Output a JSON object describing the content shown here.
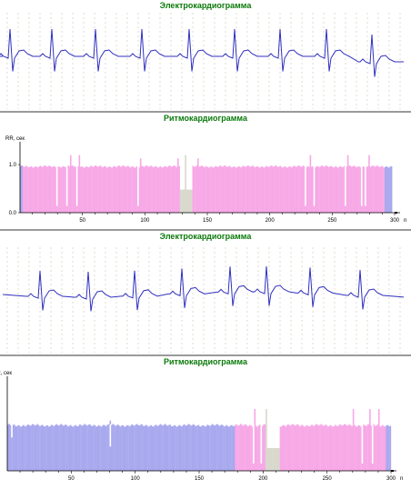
{
  "colors": {
    "ecg_line": "#3030c0",
    "grid": "#c8c8b0",
    "title": "#0a7a0a",
    "bar_pink": "#f7a8e6",
    "bar_blue": "#a8a8ee",
    "bar_gray": "#d8d8cc",
    "bar_white": "#ffffff"
  },
  "panels": [
    {
      "id": "ecg-1",
      "title": "Электрокардиограмма"
    },
    {
      "id": "rhythm-1",
      "title": "Ритмокардиограмма"
    },
    {
      "id": "ecg-2",
      "title": "Электрокардиограмма"
    },
    {
      "id": "rhythm-2",
      "title": "Ритмокардиограмма"
    }
  ],
  "chart_data": [
    {
      "type": "bar",
      "title": "Ритмокардиограмма",
      "ylabel": "RR, сек",
      "xlabel": "n",
      "xlim": [
        0,
        300
      ],
      "ylim": [
        0,
        1.4
      ],
      "x_ticks": [
        50,
        100,
        150,
        200,
        250,
        300
      ],
      "y_ticks": [
        "0.0",
        "1.0"
      ],
      "y_tick_values": [
        0,
        1.0
      ],
      "baseline": 0.96,
      "spikes_up": [
        {
          "n": 40,
          "v": 1.2
        },
        {
          "n": 47,
          "v": 1.2
        },
        {
          "n": 96,
          "v": 1.13
        },
        {
          "n": 126,
          "v": 1.13
        },
        {
          "n": 132,
          "v": 1.2
        },
        {
          "n": 142,
          "v": 1.13
        },
        {
          "n": 232,
          "v": 1.2
        },
        {
          "n": 262,
          "v": 1.2
        },
        {
          "n": 279,
          "v": 1.2
        }
      ],
      "spikes_down": [
        {
          "n": 29,
          "v": 0.14
        },
        {
          "n": 37,
          "v": 0.14
        },
        {
          "n": 45,
          "v": 0.14
        },
        {
          "n": 94,
          "v": 0.14
        },
        {
          "n": 228,
          "v": 0.14
        },
        {
          "n": 235,
          "v": 0.14
        },
        {
          "n": 260,
          "v": 0.14
        },
        {
          "n": 273,
          "v": 0.14
        },
        {
          "n": 276,
          "v": 0.14
        }
      ],
      "segments": [
        {
          "from": 0,
          "to": 2,
          "color": "blue"
        },
        {
          "from": 2,
          "to": 128,
          "color": "pink"
        },
        {
          "from": 128,
          "to": 138,
          "color": "gray"
        },
        {
          "from": 138,
          "to": 292,
          "color": "pink"
        },
        {
          "from": 292,
          "to": 298,
          "color": "blue"
        }
      ]
    },
    {
      "type": "bar",
      "title": "Ритмокардиограмма",
      "ylabel": "RR, сек",
      "xlabel": "n",
      "xlim": [
        0,
        300
      ],
      "ylim": [
        0,
        1.5
      ],
      "x_ticks": [
        50,
        100,
        150,
        200,
        250,
        300
      ],
      "y_ticks": [],
      "baseline": 0.75,
      "spikes_up": [
        {
          "n": 80,
          "v": 0.83
        },
        {
          "n": 193,
          "v": 1.02
        },
        {
          "n": 202,
          "v": 1.02
        },
        {
          "n": 270,
          "v": 1.02
        },
        {
          "n": 283,
          "v": 1.02
        },
        {
          "n": 290,
          "v": 1.02
        }
      ],
      "spikes_down": [
        {
          "n": 3,
          "v": 0.55
        },
        {
          "n": 80,
          "v": 0.4
        },
        {
          "n": 192,
          "v": 0.12
        },
        {
          "n": 198,
          "v": 0.12
        },
        {
          "n": 277,
          "v": 0.12
        },
        {
          "n": 285,
          "v": 0.12
        }
      ],
      "segments": [
        {
          "from": 0,
          "to": 178,
          "color": "blue"
        },
        {
          "from": 178,
          "to": 202,
          "color": "pink"
        },
        {
          "from": 202,
          "to": 213,
          "color": "gray"
        },
        {
          "from": 213,
          "to": 296,
          "color": "pink"
        },
        {
          "from": 296,
          "to": 300,
          "color": "blue"
        }
      ]
    }
  ]
}
